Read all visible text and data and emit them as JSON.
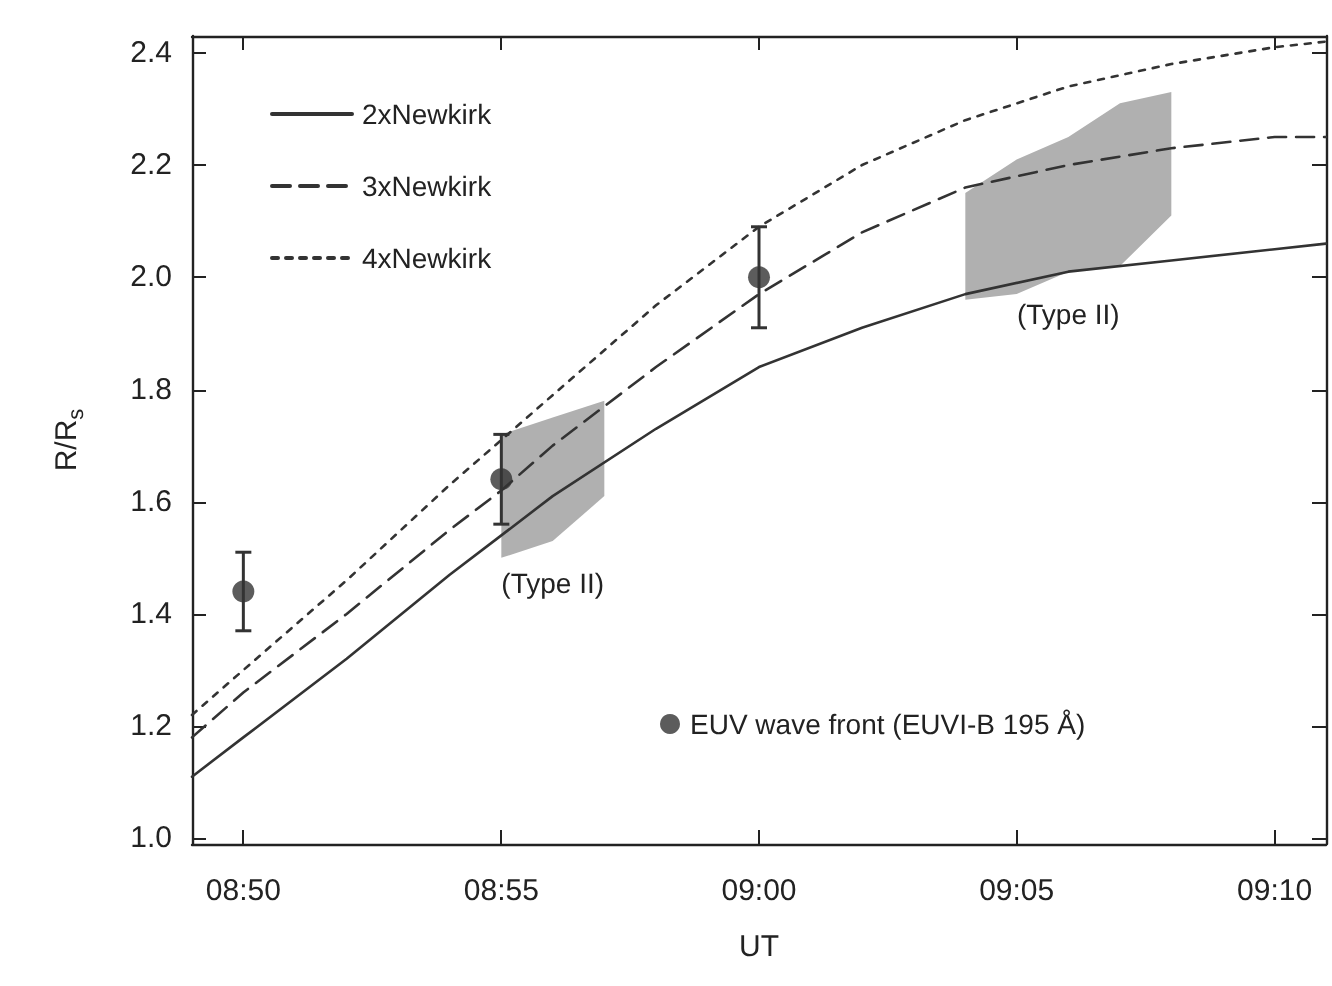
{
  "chart_data": {
    "type": "line",
    "xlabel": "UT",
    "ylabel": "R/R$_{s}$",
    "xlim": [
      8.8167,
      9.1833
    ],
    "ylim": [
      0.99,
      2.43
    ],
    "xticks": [
      {
        "value": 8.8333,
        "label": "08:50"
      },
      {
        "value": 8.9167,
        "label": "08:55"
      },
      {
        "value": 9.0,
        "label": "09:00"
      },
      {
        "value": 9.0833,
        "label": "09:05"
      },
      {
        "value": 9.1667,
        "label": "09:10"
      }
    ],
    "yticks": [
      {
        "value": 1.0,
        "label": "1.0"
      },
      {
        "value": 1.2,
        "label": "1.2"
      },
      {
        "value": 1.4,
        "label": "1.4"
      },
      {
        "value": 1.6,
        "label": "1.6"
      },
      {
        "value": 1.8,
        "label": "1.8"
      },
      {
        "value": 2.0,
        "label": "2.0"
      },
      {
        "value": 2.2,
        "label": "2.2"
      },
      {
        "value": 2.4,
        "label": "2.4"
      }
    ],
    "grid": false,
    "legend": "top left",
    "series": [
      {
        "color": "#b0b0b0",
        "x": [
          8.9167,
          8.9333,
          8.95
        ],
        "values": [
          null,
          null,
          null
        ],
        "lower": [
          1.5,
          1.53,
          1.61
        ],
        "upper": [
          1.72,
          1.75,
          1.78
        ]
      },
      {
        "color": "#b0b0b0",
        "x": [
          9.0667,
          9.0833,
          9.1,
          9.1167,
          9.1333
        ],
        "values": [
          null,
          null,
          null,
          null,
          null
        ],
        "lower": [
          1.96,
          1.97,
          2.01,
          2.02,
          2.11
        ],
        "upper": [
          2.15,
          2.21,
          2.25,
          2.31,
          2.33
        ]
      },
      {
        "name": "2xNewkirk",
        "line_style": "solid",
        "color": "#333333",
        "x": [
          8.8167,
          8.8333,
          8.8667,
          8.9,
          8.9167,
          8.9333,
          8.9667,
          9.0,
          9.0333,
          9.0667,
          9.1,
          9.1333,
          9.1667,
          9.1833
        ],
        "values": [
          1.11,
          1.18,
          1.32,
          1.47,
          1.54,
          1.61,
          1.73,
          1.84,
          1.91,
          1.97,
          2.01,
          2.03,
          2.05,
          2.06
        ]
      },
      {
        "name": "3xNewkirk",
        "line_style": "dashed",
        "color": "#333333",
        "x": [
          8.8167,
          8.8333,
          8.8667,
          8.9,
          8.9167,
          8.9333,
          8.9667,
          9.0,
          9.0333,
          9.0667,
          9.1,
          9.1333,
          9.1667,
          9.1833
        ],
        "values": [
          1.18,
          1.26,
          1.4,
          1.55,
          1.62,
          1.7,
          1.84,
          1.97,
          2.08,
          2.16,
          2.2,
          2.23,
          2.25,
          2.25
        ]
      },
      {
        "name": "4xNewkirk",
        "line_style": "dotted",
        "color": "#333333",
        "x": [
          8.8167,
          8.8333,
          8.8667,
          8.9,
          8.9167,
          8.9333,
          8.9667,
          9.0,
          9.0333,
          9.0667,
          9.1,
          9.1333,
          9.1667,
          9.1833
        ],
        "values": [
          1.22,
          1.3,
          1.46,
          1.63,
          1.71,
          1.79,
          1.95,
          2.09,
          2.2,
          2.28,
          2.34,
          2.38,
          2.41,
          2.42
        ]
      },
      {
        "name": "EUV wave front (EUVI-B 195 Å)",
        "type": "scatter",
        "marker": "circle",
        "color": "#333333",
        "x": [
          8.8333,
          8.9167,
          9.0
        ],
        "values": [
          1.44,
          1.64,
          2.0
        ],
        "errors": [
          [
            1.37,
            1.51
          ],
          [
            1.56,
            1.72
          ],
          [
            1.91,
            2.09
          ]
        ]
      }
    ],
    "annotations": [
      {
        "text": "(Type II)",
        "x": 8.9333,
        "y": 1.53
      },
      {
        "text": "(Type II)",
        "x": 9.1,
        "y": 2.01
      }
    ]
  }
}
